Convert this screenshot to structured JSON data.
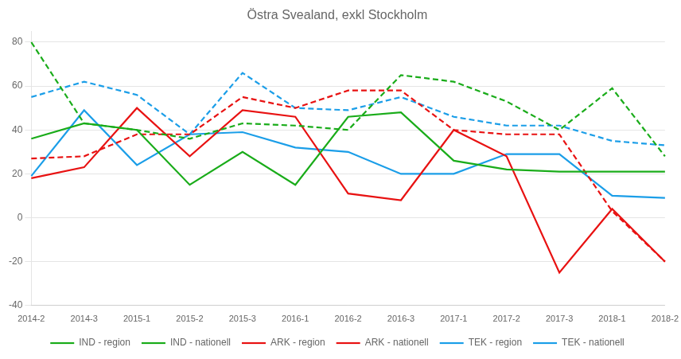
{
  "chart_data": {
    "type": "line",
    "title": "Östra Svealand, exkl Stockholm",
    "categories": [
      "2014-2",
      "2014-3",
      "2015-1",
      "2015-2",
      "2015-3",
      "2016-1",
      "2016-2",
      "2016-3",
      "2017-1",
      "2017-2",
      "2017-3",
      "2018-1",
      "2018-2"
    ],
    "series": [
      {
        "name": "IND - region",
        "color": "#1aac1a",
        "line_style": "solid",
        "marker": "none",
        "values": [
          36,
          43,
          40,
          15,
          30,
          15,
          46,
          48,
          26,
          22,
          21,
          21,
          21
        ]
      },
      {
        "name": "IND - nationell",
        "color": "#1aac1a",
        "line_style": "dashed",
        "marker": "none",
        "values": [
          80,
          43,
          40,
          36,
          43,
          42,
          40,
          65,
          62,
          53,
          40,
          59,
          28
        ]
      },
      {
        "name": "ARK - region",
        "color": "#e81212",
        "line_style": "solid",
        "marker": "none",
        "values": [
          18,
          23,
          50,
          28,
          49,
          46,
          11,
          8,
          40,
          28,
          -25,
          4,
          -20
        ]
      },
      {
        "name": "ARK - nationell",
        "color": "#e81212",
        "line_style": "dashed",
        "marker": "none",
        "values": [
          27,
          28,
          38,
          38,
          55,
          50,
          58,
          58,
          40,
          38,
          38,
          3,
          -20
        ]
      },
      {
        "name": "TEK - region",
        "color": "#1b9ee8",
        "line_style": "solid",
        "marker": "none",
        "values": [
          19,
          49,
          24,
          38,
          39,
          32,
          30,
          20,
          20,
          29,
          29,
          10,
          9
        ]
      },
      {
        "name": "TEK - nationell",
        "color": "#1b9ee8",
        "line_style": "dashed",
        "marker": "none",
        "values": [
          55,
          62,
          56,
          38,
          66,
          50,
          49,
          55,
          46,
          42,
          42,
          35,
          33
        ]
      }
    ],
    "ylim": [
      -40,
      85
    ],
    "yticks": [
      -40,
      -20,
      0,
      20,
      40,
      60,
      80
    ],
    "grid": true,
    "legend": "bottom"
  }
}
